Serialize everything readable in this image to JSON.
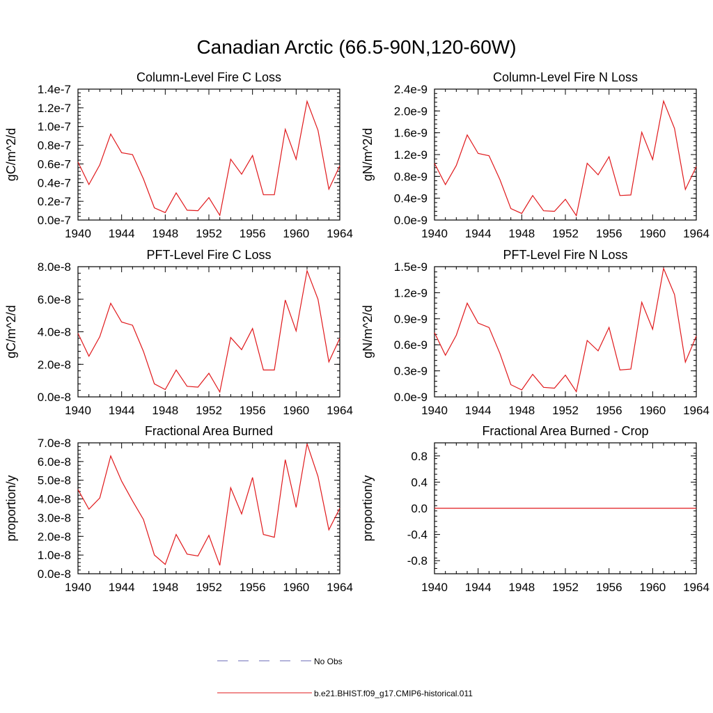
{
  "figure": {
    "title": "Canadian Arctic (66.5-90N,120-60W)",
    "legend": [
      {
        "label": "No Obs",
        "style": "dashed",
        "color": "#6a6ab5"
      },
      {
        "label": "b.e21.BHIST.f09_g17.CMIP6-historical.011",
        "style": "solid",
        "color": "#e0181b"
      }
    ]
  },
  "chart_data": [
    {
      "type": "line",
      "title": "Column-Level Fire C Loss",
      "ylabel": "gC/m^2/d",
      "xlim": [
        1940,
        1964
      ],
      "ylim": [
        0,
        1.4e-07
      ],
      "x_ticks": [
        "1940",
        "1944",
        "1948",
        "1952",
        "1956",
        "1960",
        "1964"
      ],
      "y_ticks": [
        {
          "value": 0.0,
          "label": "0.0e-7"
        },
        {
          "value": 2e-08,
          "label": "0.2e-7"
        },
        {
          "value": 4e-08,
          "label": "0.4e-7"
        },
        {
          "value": 6e-08,
          "label": "0.6e-7"
        },
        {
          "value": 8e-08,
          "label": "0.8e-7"
        },
        {
          "value": 1e-07,
          "label": "1.0e-7"
        },
        {
          "value": 1.2e-07,
          "label": "1.2e-7"
        },
        {
          "value": 1.4e-07,
          "label": "1.4e-7"
        }
      ],
      "color": "#e0181b",
      "x": [
        1940,
        1941,
        1942,
        1943,
        1944,
        1945,
        1946,
        1947,
        1948,
        1949,
        1950,
        1951,
        1952,
        1953,
        1954,
        1955,
        1956,
        1957,
        1958,
        1959,
        1960,
        1961,
        1962,
        1963,
        1964
      ],
      "values": [
        6.2e-08,
        3.8e-08,
        5.9e-08,
        9.2e-08,
        7.2e-08,
        7e-08,
        4.4e-08,
        1.3e-08,
        8e-09,
        2.9e-08,
        1.05e-08,
        1e-08,
        2.4e-08,
        5e-09,
        6.5e-08,
        4.9e-08,
        6.9e-08,
        2.7e-08,
        2.7e-08,
        9.7e-08,
        6.5e-08,
        1.27e-07,
        9.6e-08,
        3.3e-08,
        5.8e-08
      ]
    },
    {
      "type": "line",
      "title": "Column-Level Fire N Loss",
      "ylabel": "gN/m^2/d",
      "xlim": [
        1940,
        1964
      ],
      "ylim": [
        0,
        2.4e-09
      ],
      "x_ticks": [
        "1940",
        "1944",
        "1948",
        "1952",
        "1956",
        "1960",
        "1964"
      ],
      "y_ticks": [
        {
          "value": 0.0,
          "label": "0.0e-9"
        },
        {
          "value": 4e-10,
          "label": "0.4e-9"
        },
        {
          "value": 8e-10,
          "label": "0.8e-9"
        },
        {
          "value": 1.2e-09,
          "label": "1.2e-9"
        },
        {
          "value": 1.6e-09,
          "label": "1.6e-9"
        },
        {
          "value": 2e-09,
          "label": "2.0e-9"
        },
        {
          "value": 2.4e-09,
          "label": "2.4e-9"
        }
      ],
      "color": "#e0181b",
      "x": [
        1940,
        1941,
        1942,
        1943,
        1944,
        1945,
        1946,
        1947,
        1948,
        1949,
        1950,
        1951,
        1952,
        1953,
        1954,
        1955,
        1956,
        1957,
        1958,
        1959,
        1960,
        1961,
        1962,
        1963,
        1964
      ],
      "values": [
        1.04e-09,
        6.5e-10,
        1e-09,
        1.56e-09,
        1.22e-09,
        1.18e-09,
        7.4e-10,
        2.1e-10,
        1.2e-10,
        4.5e-10,
        1.7e-10,
        1.6e-10,
        3.8e-10,
        8e-11,
        1.04e-09,
        8.3e-10,
        1.16e-09,
        4.5e-10,
        4.6e-10,
        1.61e-09,
        1.11e-09,
        2.18e-09,
        1.68e-09,
        5.6e-10,
        9.8e-10
      ]
    },
    {
      "type": "line",
      "title": "PFT-Level Fire C Loss",
      "ylabel": "gC/m^2/d",
      "xlim": [
        1940,
        1964
      ],
      "ylim": [
        0,
        8e-08
      ],
      "x_ticks": [
        "1940",
        "1944",
        "1948",
        "1952",
        "1956",
        "1960",
        "1964"
      ],
      "y_ticks": [
        {
          "value": 0.0,
          "label": "0.0e-8"
        },
        {
          "value": 2e-08,
          "label": "2.0e-8"
        },
        {
          "value": 4e-08,
          "label": "4.0e-8"
        },
        {
          "value": 6e-08,
          "label": "6.0e-8"
        },
        {
          "value": 8e-08,
          "label": "8.0e-8"
        }
      ],
      "color": "#e0181b",
      "x": [
        1940,
        1941,
        1942,
        1943,
        1944,
        1945,
        1946,
        1947,
        1948,
        1949,
        1950,
        1951,
        1952,
        1953,
        1954,
        1955,
        1956,
        1957,
        1958,
        1959,
        1960,
        1961,
        1962,
        1963,
        1964
      ],
      "values": [
        3.9e-08,
        2.5e-08,
        3.7e-08,
        5.75e-08,
        4.6e-08,
        4.4e-08,
        2.8e-08,
        8e-09,
        4.5e-09,
        1.65e-08,
        6.5e-09,
        6e-09,
        1.45e-08,
        3e-09,
        3.65e-08,
        2.9e-08,
        4.2e-08,
        1.65e-08,
        1.65e-08,
        5.95e-08,
        4.05e-08,
        7.75e-08,
        6e-08,
        2.15e-08,
        3.6e-08
      ]
    },
    {
      "type": "line",
      "title": "PFT-Level Fire N Loss",
      "ylabel": "gN/m^2/d",
      "xlim": [
        1940,
        1964
      ],
      "ylim": [
        0,
        1.5e-09
      ],
      "x_ticks": [
        "1940",
        "1944",
        "1948",
        "1952",
        "1956",
        "1960",
        "1964"
      ],
      "y_ticks": [
        {
          "value": 0.0,
          "label": "0.0e-9"
        },
        {
          "value": 3e-10,
          "label": "0.3e-9"
        },
        {
          "value": 6e-10,
          "label": "0.6e-9"
        },
        {
          "value": 9e-10,
          "label": "0.9e-9"
        },
        {
          "value": 1.2e-09,
          "label": "1.2e-9"
        },
        {
          "value": 1.5e-09,
          "label": "1.5e-9"
        }
      ],
      "color": "#e0181b",
      "x": [
        1940,
        1941,
        1942,
        1943,
        1944,
        1945,
        1946,
        1947,
        1948,
        1949,
        1950,
        1951,
        1952,
        1953,
        1954,
        1955,
        1956,
        1957,
        1958,
        1959,
        1960,
        1961,
        1962,
        1963,
        1964
      ],
      "values": [
        7.4e-10,
        4.8e-10,
        7.1e-10,
        1.08e-09,
        8.5e-10,
        8e-10,
        5e-10,
        1.4e-10,
        8e-11,
        2.6e-10,
        1.1e-10,
        1e-10,
        2.5e-10,
        6e-11,
        6.5e-10,
        5.3e-10,
        8e-10,
        3.1e-10,
        3.2e-10,
        1.09e-09,
        7.8e-10,
        1.48e-09,
        1.18e-09,
        4e-10,
        7e-10
      ]
    },
    {
      "type": "line",
      "title": "Fractional Area Burned",
      "ylabel": "proportion/y",
      "xlim": [
        1940,
        1964
      ],
      "ylim": [
        0,
        7e-08
      ],
      "x_ticks": [
        "1940",
        "1944",
        "1948",
        "1952",
        "1956",
        "1960",
        "1964"
      ],
      "y_ticks": [
        {
          "value": 0.0,
          "label": "0.0e-8"
        },
        {
          "value": 1e-08,
          "label": "1.0e-8"
        },
        {
          "value": 2e-08,
          "label": "2.0e-8"
        },
        {
          "value": 3e-08,
          "label": "3.0e-8"
        },
        {
          "value": 4e-08,
          "label": "4.0e-8"
        },
        {
          "value": 5e-08,
          "label": "5.0e-8"
        },
        {
          "value": 6e-08,
          "label": "6.0e-8"
        },
        {
          "value": 7e-08,
          "label": "7.0e-8"
        }
      ],
      "color": "#e0181b",
      "x": [
        1940,
        1941,
        1942,
        1943,
        1944,
        1945,
        1946,
        1947,
        1948,
        1949,
        1950,
        1951,
        1952,
        1953,
        1954,
        1955,
        1956,
        1957,
        1958,
        1959,
        1960,
        1961,
        1962,
        1963,
        1964
      ],
      "values": [
        4.5e-08,
        3.45e-08,
        4.05e-08,
        6.3e-08,
        4.95e-08,
        3.9e-08,
        2.9e-08,
        1e-08,
        5e-09,
        2.1e-08,
        1.05e-08,
        9.5e-09,
        2.05e-08,
        4.5e-09,
        4.6e-08,
        3.2e-08,
        5.15e-08,
        2.1e-08,
        1.95e-08,
        6.1e-08,
        3.55e-08,
        6.95e-08,
        5.2e-08,
        2.35e-08,
        3.5e-08
      ]
    },
    {
      "type": "line",
      "title": "Fractional Area Burned - Crop",
      "ylabel": "proportion/y",
      "xlim": [
        1940,
        1964
      ],
      "ylim": [
        -1.0,
        1.0
      ],
      "x_ticks": [
        "1940",
        "1944",
        "1948",
        "1952",
        "1956",
        "1960",
        "1964"
      ],
      "y_ticks": [
        {
          "value": -0.8,
          "label": "-0.8"
        },
        {
          "value": -0.4,
          "label": "-0.4"
        },
        {
          "value": 0.0,
          "label": "0.0"
        },
        {
          "value": 0.4,
          "label": "0.4"
        },
        {
          "value": 0.8,
          "label": "0.8"
        }
      ],
      "color": "#e0181b",
      "x": [
        1940,
        1941,
        1942,
        1943,
        1944,
        1945,
        1946,
        1947,
        1948,
        1949,
        1950,
        1951,
        1952,
        1953,
        1954,
        1955,
        1956,
        1957,
        1958,
        1959,
        1960,
        1961,
        1962,
        1963,
        1964
      ],
      "values": [
        0,
        0,
        0,
        0,
        0,
        0,
        0,
        0,
        0,
        0,
        0,
        0,
        0,
        0,
        0,
        0,
        0,
        0,
        0,
        0,
        0,
        0,
        0,
        0,
        0
      ]
    }
  ]
}
